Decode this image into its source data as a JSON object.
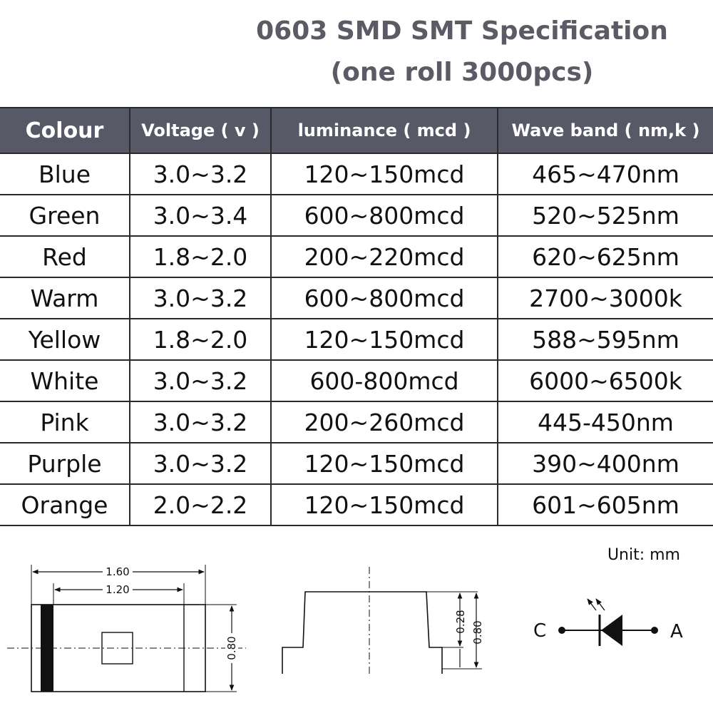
{
  "title": {
    "line1": "0603 SMD SMT Specification",
    "line2": "(one roll 3000pcs)"
  },
  "table": {
    "headers": [
      "Colour",
      "Voltage ( v )",
      "luminance ( mcd )",
      "Wave band ( nm,k )"
    ],
    "rows": [
      [
        "Blue",
        "3.0~3.2",
        "120~150mcd",
        "465~470nm"
      ],
      [
        "Green",
        "3.0~3.4",
        "600~800mcd",
        "520~525nm"
      ],
      [
        "Red",
        "1.8~2.0",
        "200~220mcd",
        "620~625nm"
      ],
      [
        "Warm",
        "3.0~3.2",
        "600~800mcd",
        "2700~3000k"
      ],
      [
        "Yellow",
        "1.8~2.0",
        "120~150mcd",
        "588~595nm"
      ],
      [
        "White",
        "3.0~3.2",
        "600-800mcd",
        "6000~6500k"
      ],
      [
        "Pink",
        "3.0~3.2",
        "200~260mcd",
        "445-450nm"
      ],
      [
        "Purple",
        "3.0~3.2",
        "120~150mcd",
        "390~400nm"
      ],
      [
        "Orange",
        "2.0~2.2",
        "120~150mcd",
        "601~605nm"
      ]
    ]
  },
  "unit_label": "Unit: mm",
  "drawing": {
    "top_view": {
      "length": "1.60",
      "inner_length": "1.20",
      "width": "0.80"
    },
    "side_view": {
      "lens_height": "0.28",
      "total_height": "0.80"
    },
    "symbol": {
      "cathode": "C",
      "anode": "A"
    }
  },
  "colors": {
    "header_bg": "#575966",
    "title_text": "#5b5b66"
  }
}
